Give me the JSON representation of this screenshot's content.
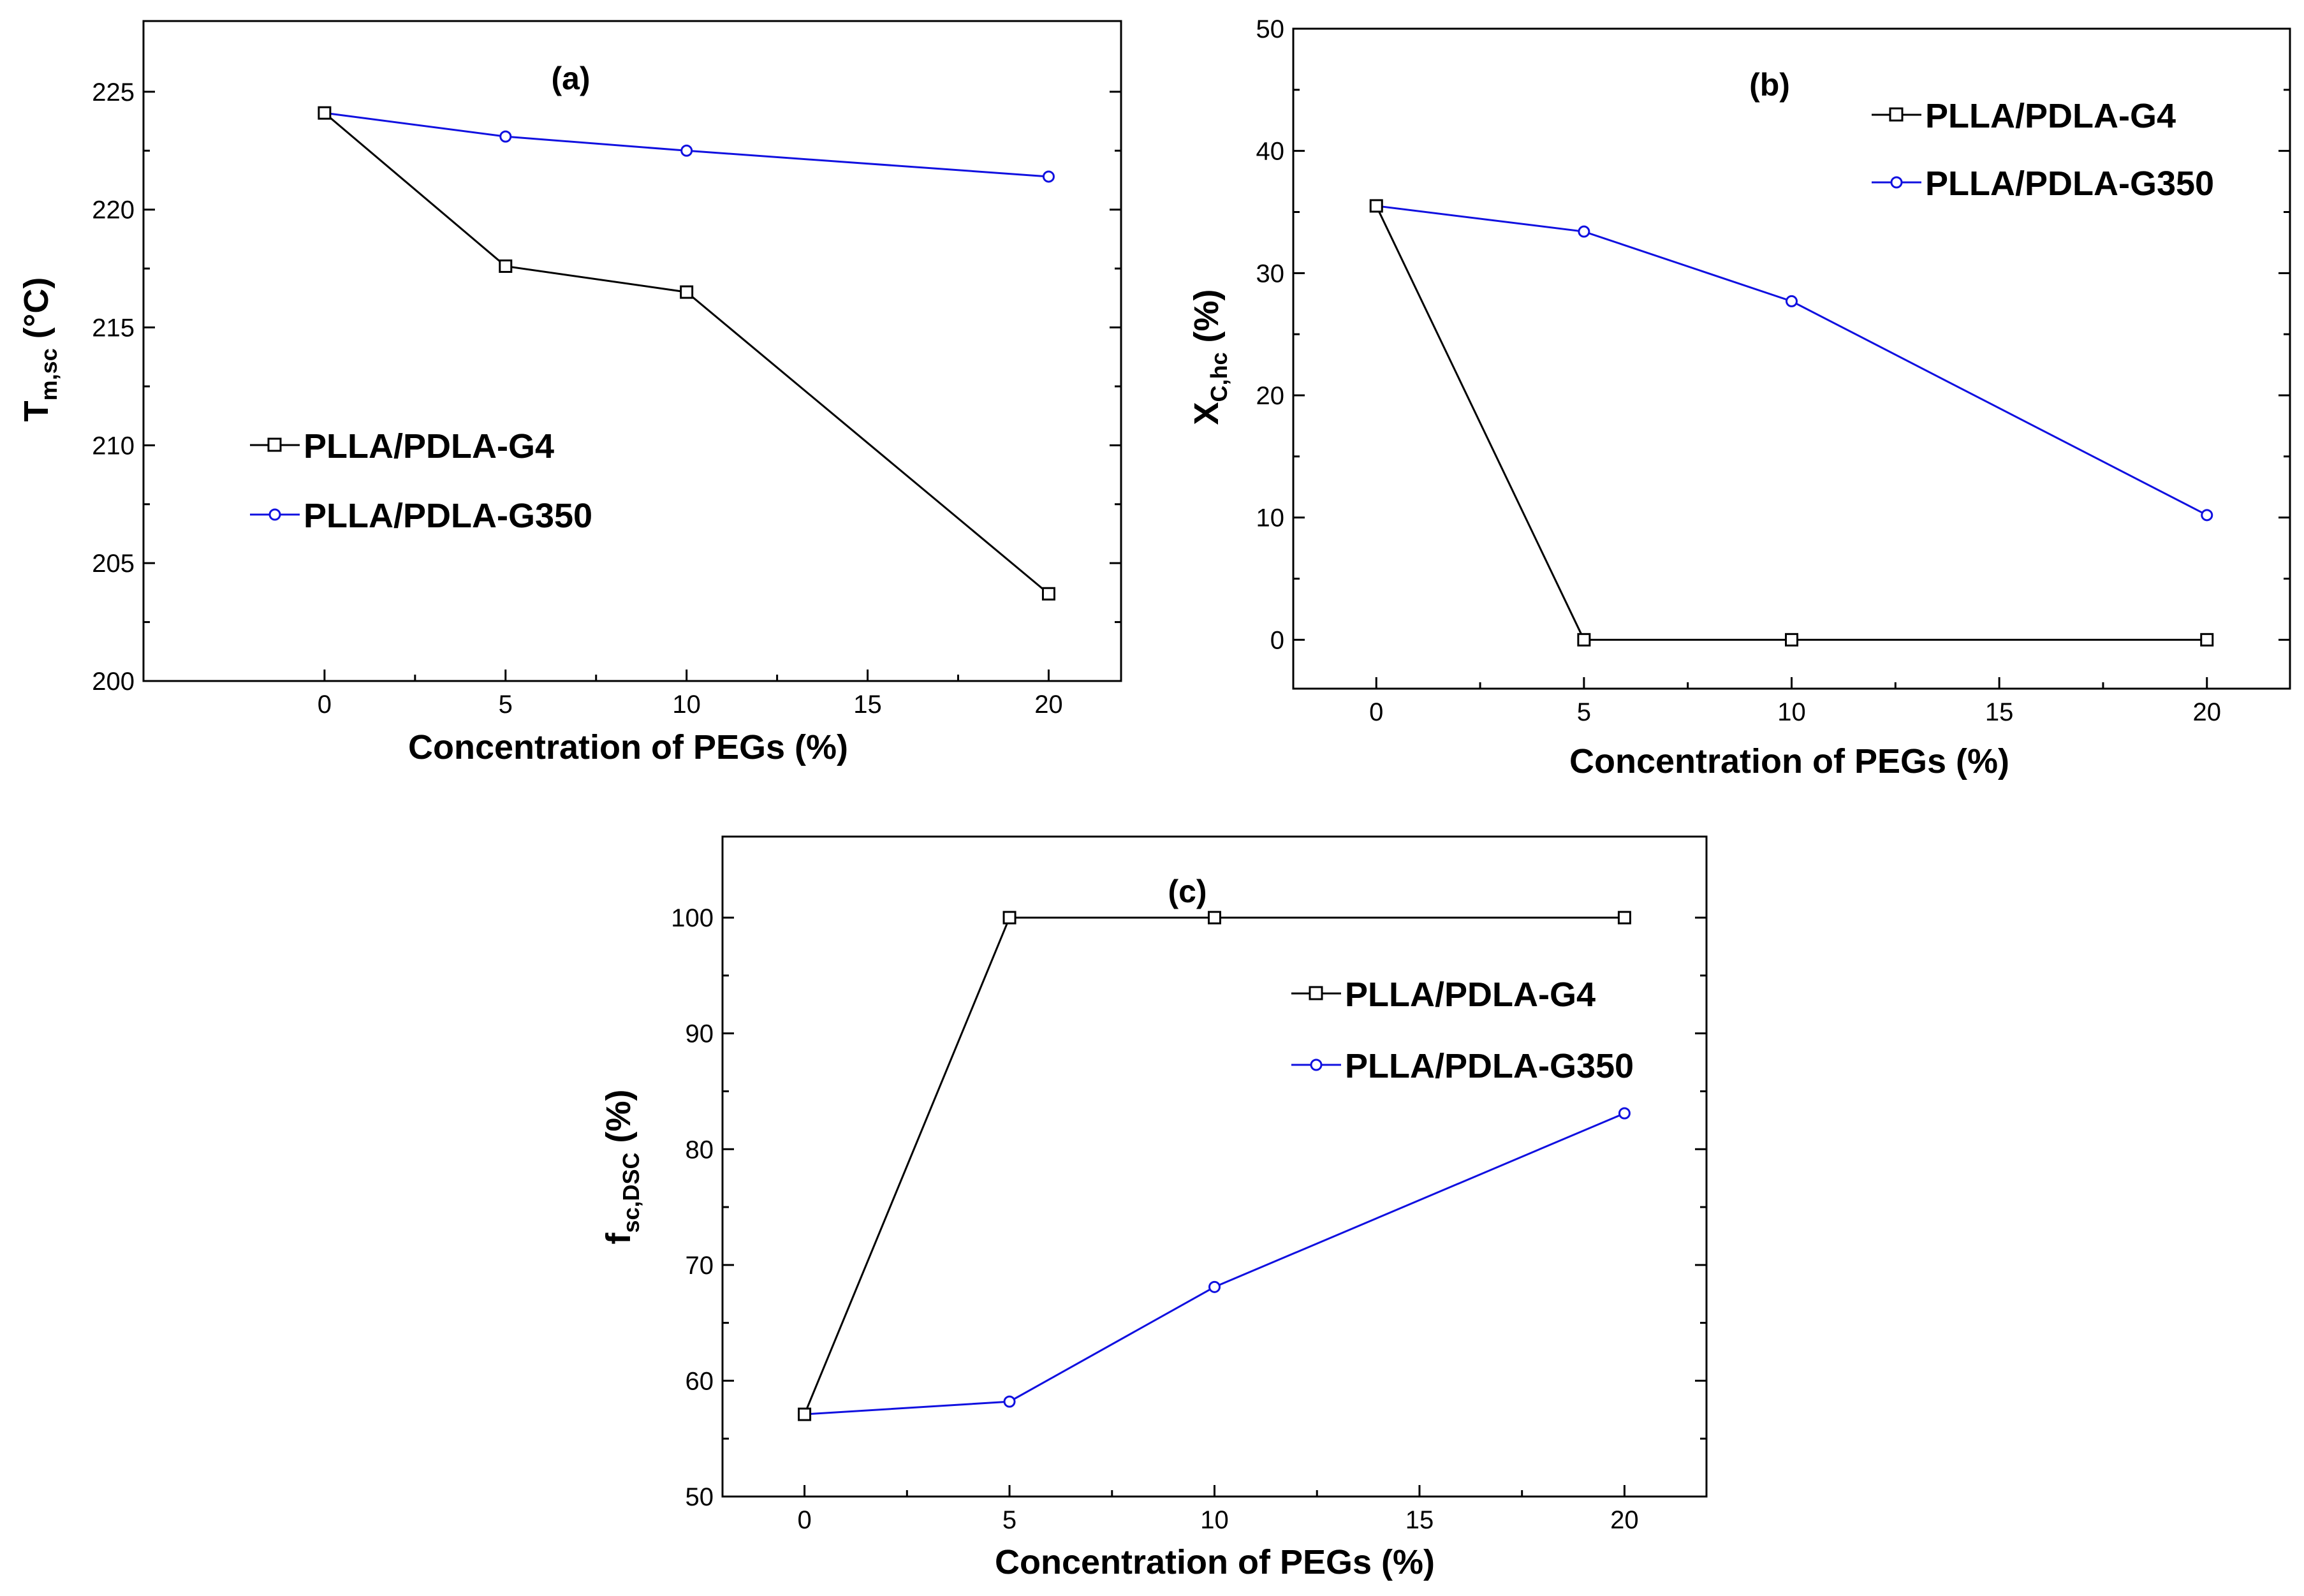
{
  "chart_data": [
    {
      "type": "line",
      "panel_label": "(a)",
      "title": "",
      "xlabel": "Concentration of PEGs (%)",
      "ylabel_main": "T",
      "ylabel_sub": "m,sc",
      "ylabel_unit": " (°C)",
      "xlim": [
        -5,
        22
      ],
      "ylim": [
        200,
        228
      ],
      "xticks": [
        0,
        5,
        10,
        15,
        20
      ],
      "yticks": [
        200,
        205,
        210,
        215,
        220,
        225
      ],
      "legend_position": "center-left",
      "series": [
        {
          "name": "PLLA/PDLA-G4",
          "color": "#000000",
          "marker": "square",
          "x": [
            0,
            5,
            10,
            20
          ],
          "y": [
            224.1,
            217.6,
            216.5,
            203.7
          ]
        },
        {
          "name": "PLLA/PDLA-G350",
          "color": "#1010e0",
          "marker": "circle",
          "x": [
            0,
            5,
            10,
            20
          ],
          "y": [
            224.1,
            223.1,
            222.5,
            221.4
          ]
        }
      ]
    },
    {
      "type": "line",
      "panel_label": "(b)",
      "title": "",
      "xlabel": "Concentration of PEGs (%)",
      "ylabel_main": "X",
      "ylabel_sub": "C,hc",
      "ylabel_unit": " (%)",
      "xlim": [
        -2,
        22
      ],
      "ylim": [
        -4,
        50
      ],
      "xticks": [
        0,
        5,
        10,
        15,
        20
      ],
      "yticks": [
        0,
        10,
        20,
        30,
        40,
        50
      ],
      "legend_position": "top-right",
      "series": [
        {
          "name": "PLLA/PDLA-G4",
          "color": "#000000",
          "marker": "square",
          "x": [
            0,
            5,
            10,
            20
          ],
          "y": [
            35.5,
            0,
            0,
            0
          ]
        },
        {
          "name": "PLLA/PDLA-G350",
          "color": "#1010e0",
          "marker": "circle",
          "x": [
            0,
            5,
            10,
            20
          ],
          "y": [
            35.5,
            33.4,
            27.7,
            10.2
          ]
        }
      ]
    },
    {
      "type": "line",
      "panel_label": "(c)",
      "title": "",
      "xlabel": "Concentration of PEGs (%)",
      "ylabel_main": "f",
      "ylabel_sub": "sc,DSC",
      "ylabel_unit": " (%)",
      "xlim": [
        -2,
        22
      ],
      "ylim": [
        50,
        107
      ],
      "xticks": [
        0,
        5,
        10,
        15,
        20
      ],
      "yticks": [
        50,
        60,
        70,
        80,
        90,
        100
      ],
      "legend_position": "right",
      "series": [
        {
          "name": "PLLA/PDLA-G4",
          "color": "#000000",
          "marker": "square",
          "x": [
            0,
            5,
            10,
            20
          ],
          "y": [
            57.1,
            100,
            100,
            100
          ]
        },
        {
          "name": "PLLA/PDLA-G350",
          "color": "#1010e0",
          "marker": "circle",
          "x": [
            0,
            5,
            10,
            20
          ],
          "y": [
            57.1,
            58.2,
            68.1,
            83.1
          ]
        }
      ]
    }
  ]
}
